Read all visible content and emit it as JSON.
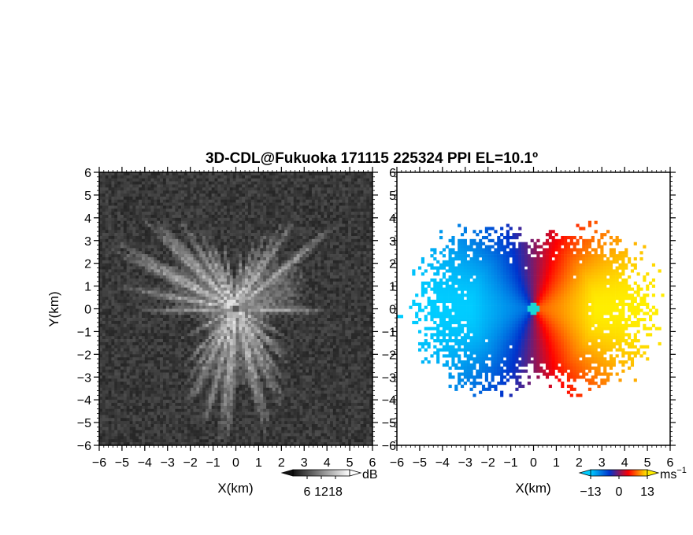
{
  "figure": {
    "title": "3D-CDL@Fukuoka 171115 225324 PPI EL=10.1º"
  },
  "chart_data": [
    {
      "type": "heatmap",
      "title": "",
      "xlabel": "X(km)",
      "ylabel": "Y(km)",
      "xlim": [
        -6,
        6
      ],
      "ylim": [
        -6,
        6
      ],
      "xticks": [
        "−6",
        "−5",
        "−4",
        "−3",
        "−2",
        "−1",
        "0",
        "1",
        "2",
        "3",
        "4",
        "5",
        "6"
      ],
      "yticks": [
        "−6",
        "−5",
        "−4",
        "−3",
        "−2",
        "−1",
        "0",
        "1",
        "2",
        "3",
        "4",
        "5",
        "6"
      ],
      "colorbar": {
        "unit": "dB",
        "ticks": [
          "6",
          "12",
          "18"
        ],
        "range": [
          0,
          24
        ],
        "colors": [
          "#111111",
          "#ffffff"
        ]
      },
      "field": {
        "quantity": "SNR",
        "background_level": 2,
        "peak_level": 18,
        "max_range_km": 5.5
      },
      "grid": false,
      "legend": "none"
    },
    {
      "type": "heatmap",
      "title": "",
      "xlabel": "X(km)",
      "ylabel": "",
      "xlim": [
        -6,
        6
      ],
      "ylim": [
        -6,
        6
      ],
      "xticks": [
        "−6",
        "−5",
        "−4",
        "−3",
        "−2",
        "−1",
        "0",
        "1",
        "2",
        "3",
        "4",
        "5",
        "6"
      ],
      "yticks": [],
      "colorbar": {
        "unit": "ms",
        "unit_exponent": "−1",
        "ticks": [
          "−13",
          "0",
          "13"
        ],
        "range": [
          -13,
          13
        ],
        "colors": [
          "#00ccff",
          "#0033cc",
          "#ff0000",
          "#ffee00"
        ]
      },
      "field": {
        "quantity": "Doppler velocity",
        "wind_from_deg": 90,
        "max_velocity": 13,
        "max_range_km": 5.5
      },
      "grid": false,
      "legend": "none"
    }
  ]
}
